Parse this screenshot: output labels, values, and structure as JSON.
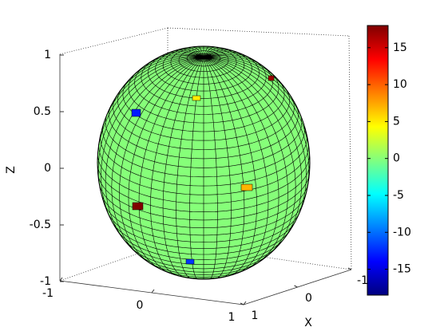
{
  "chart_data": {
    "type": "surface",
    "xlabel": "X",
    "zlabel": "Z",
    "xlim": [
      -1,
      1
    ],
    "ylim": [
      -1,
      1
    ],
    "zlim": [
      -1,
      1
    ],
    "xticks": [
      -1,
      0,
      1
    ],
    "yticks": [
      -1,
      0,
      1
    ],
    "zticks": [
      -1,
      -0.5,
      0,
      0.5,
      1
    ],
    "base_value": 0,
    "patch_values": [
      17,
      5,
      -13,
      18,
      7,
      -12
    ],
    "colormap": "jet",
    "clim": [
      -18.5,
      18
    ],
    "colorbar_ticks": [
      -15,
      -10,
      -5,
      0,
      5,
      10,
      15
    ]
  }
}
